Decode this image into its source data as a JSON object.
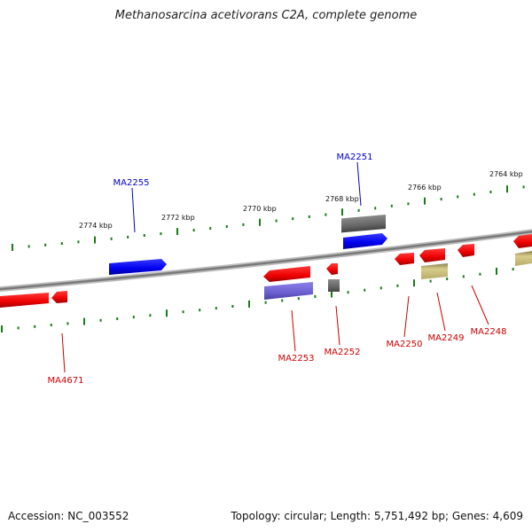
{
  "title": "Methanosarcina acetivorans C2A, complete genome",
  "footer": {
    "accession": "Accession: NC_003552",
    "summary": "Topology: circular; Length: 5,751,492 bp; Genes: 4,609"
  },
  "ticks": [
    "2774 kbp",
    "2772 kbp",
    "2770 kbp",
    "2768 kbp",
    "2766 kbp",
    "2764 kbp"
  ],
  "gene_labels": {
    "top": [
      "MA2255",
      "MA2251"
    ],
    "bottom": [
      "MA4671",
      "MA2253",
      "MA2252",
      "MA2250",
      "MA2249",
      "MA2248"
    ]
  },
  "colors": {
    "forward_gene": "#0000ee",
    "reverse_gene": "#ee0000",
    "rna": "#6c5fd0",
    "pseudo": "#666666",
    "other": "#c8bc7a",
    "tick": "#1a7a1a",
    "backbone": "#8a8a8a",
    "label_top": "#0000cc",
    "label_bottom": "#cc0000"
  }
}
